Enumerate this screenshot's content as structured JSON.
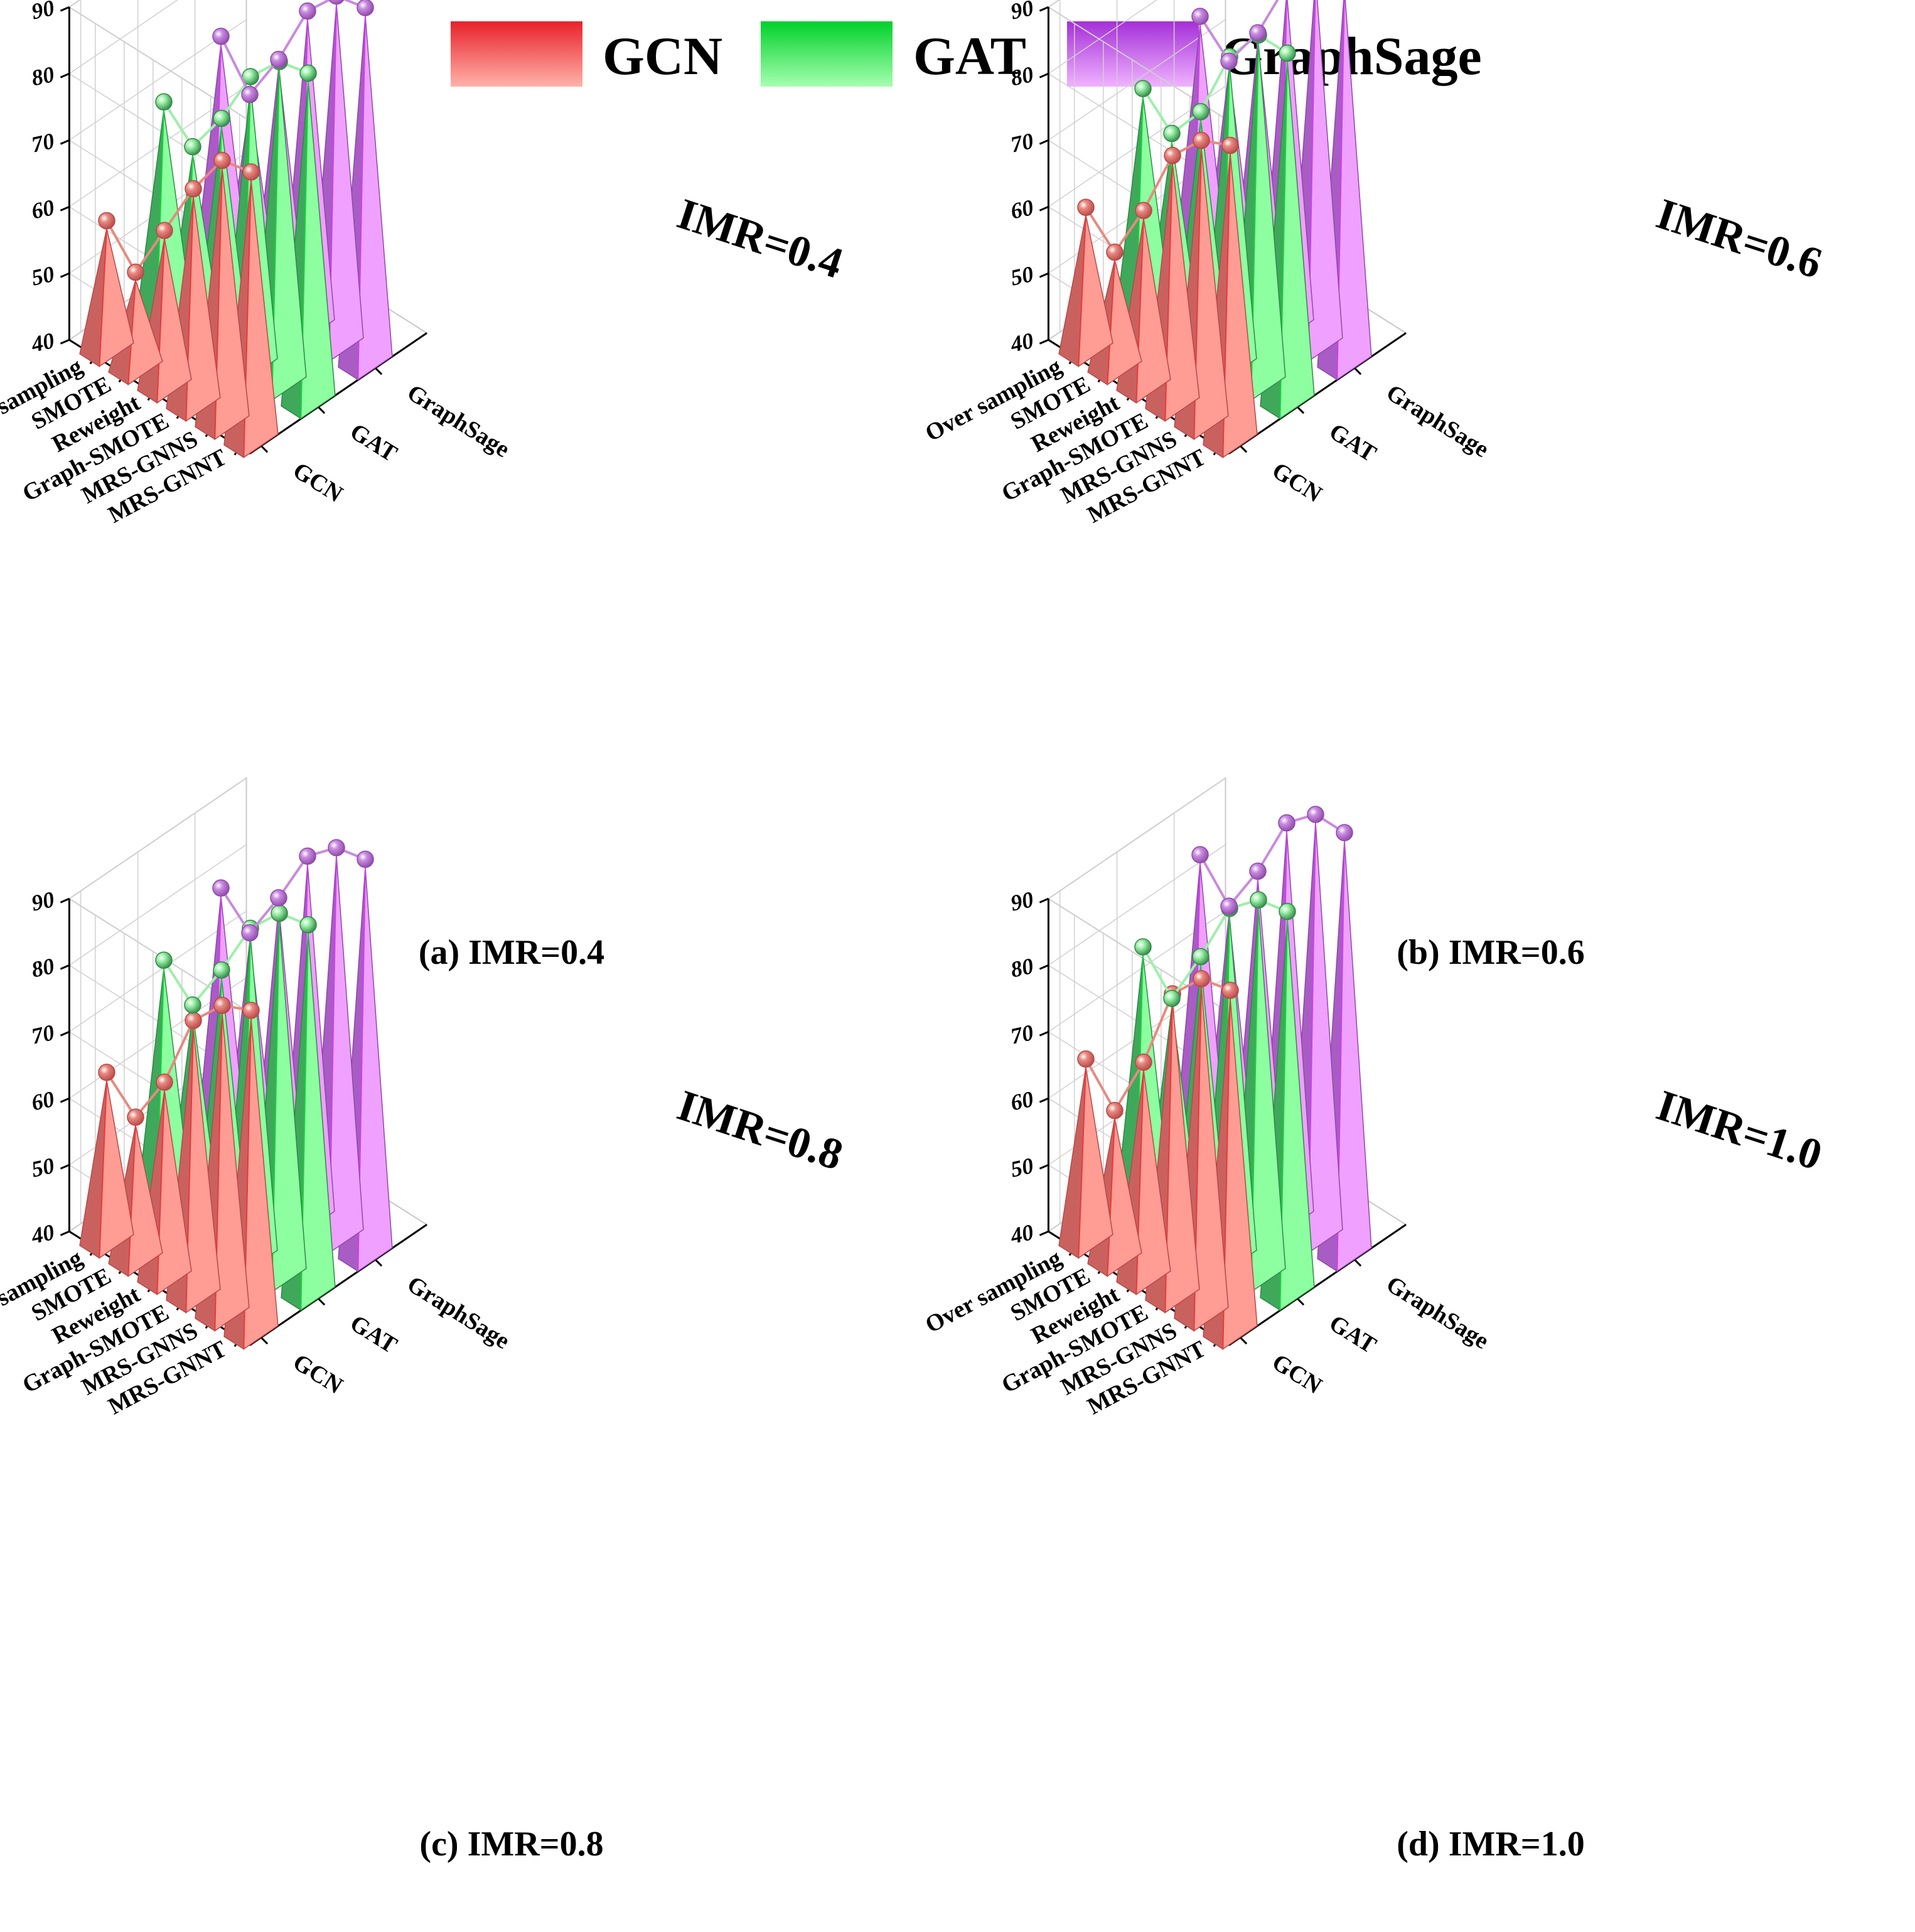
{
  "legend": {
    "items": [
      {
        "label": "GCN",
        "color": "#f26b6b"
      },
      {
        "label": "GAT",
        "color": "#2ee05a"
      },
      {
        "label": "GraphSage",
        "color": "#d66cf0"
      }
    ]
  },
  "chart_data": [
    {
      "type": "3d-pyramid-bar",
      "caption": "(a) IMR=0.4",
      "annotation": "IMR=0.4",
      "categories": [
        "MRS-GNNT",
        "MRS-GNNS",
        "Graph-SMOTE",
        "Reweight",
        "SMOTE",
        "Over sampling"
      ],
      "models": [
        "GCN",
        "GAT",
        "GraphSage"
      ],
      "z_ticks": [
        "40",
        "50",
        "60",
        "70",
        "80",
        "90"
      ],
      "zlim": [
        40,
        90
      ],
      "series": [
        {
          "name": "GCN",
          "values": [
            79,
            78,
            71,
            62,
            53,
            58
          ]
        },
        {
          "name": "GAT",
          "values": [
            88,
            87,
            82,
            73,
            66,
            70
          ]
        },
        {
          "name": "GraphSage",
          "values": [
            92,
            91,
            86,
            76,
            68,
            74
          ]
        }
      ]
    },
    {
      "type": "3d-pyramid-bar",
      "caption": "(b) IMR=0.6",
      "annotation": "IMR=0.6",
      "categories": [
        "MRS-GNNT",
        "MRS-GNNS",
        "Graph-SMOTE",
        "Reweight",
        "SMOTE",
        "Over sampling"
      ],
      "models": [
        "GCN",
        "GAT",
        "GraphSage"
      ],
      "z_ticks": [
        "40",
        "50",
        "60",
        "70",
        "80",
        "90"
      ],
      "zlim": [
        40,
        90
      ],
      "series": [
        {
          "name": "GCN",
          "values": [
            83,
            81,
            76,
            65,
            56,
            60
          ]
        },
        {
          "name": "GAT",
          "values": [
            91,
            91,
            85,
            74,
            68,
            72
          ]
        },
        {
          "name": "GraphSage",
          "values": [
            96,
            95,
            90,
            80,
            73,
            77
          ]
        }
      ]
    },
    {
      "type": "3d-pyramid-bar",
      "caption": "(c) IMR=0.8",
      "annotation": "IMR=0.8",
      "categories": [
        "MRS-GNNT",
        "MRS-GNNS",
        "Graph-SMOTE",
        "Reweight",
        "SMOTE",
        "Over sampling"
      ],
      "models": [
        "GCN",
        "GAT",
        "GraphSage"
      ],
      "z_ticks": [
        "40",
        "50",
        "60",
        "70",
        "80",
        "90"
      ],
      "zlim": [
        40,
        90
      ],
      "series": [
        {
          "name": "GCN",
          "values": [
            87,
            85,
            80,
            68,
            60,
            64
          ]
        },
        {
          "name": "GAT",
          "values": [
            94,
            93,
            88,
            79,
            71,
            75
          ]
        },
        {
          "name": "GraphSage",
          "values": [
            98,
            97,
            93,
            84,
            76,
            80
          ]
        }
      ]
    },
    {
      "type": "3d-pyramid-bar",
      "caption": "(d) IMR=1.0",
      "annotation": "IMR=1.0",
      "categories": [
        "MRS-GNNT",
        "MRS-GNNS",
        "Graph-SMOTE",
        "Reweight",
        "SMOTE",
        "Over sampling"
      ],
      "models": [
        "GCN",
        "GAT",
        "GraphSage"
      ],
      "z_ticks": [
        "40",
        "50",
        "60",
        "70",
        "80",
        "90"
      ],
      "zlim": [
        40,
        90
      ],
      "series": [
        {
          "name": "GCN",
          "values": [
            90,
            89,
            84,
            71,
            61,
            66
          ]
        },
        {
          "name": "GAT",
          "values": [
            96,
            95,
            91,
            81,
            72,
            77
          ]
        },
        {
          "name": "GraphSage",
          "values": [
            102,
            102,
            98,
            88,
            80,
            85
          ]
        }
      ]
    }
  ]
}
